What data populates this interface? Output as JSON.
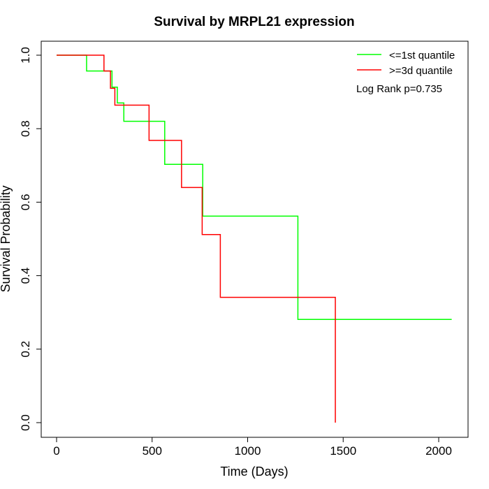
{
  "chart_data": {
    "type": "line",
    "subtype": "kaplan-meier step",
    "title": "Survival by MRPL21 expression",
    "xlabel": "Time (Days)",
    "ylabel": "Survival Probability",
    "xlim": [
      0,
      2070
    ],
    "ylim": [
      0,
      1
    ],
    "xticks": [
      0,
      500,
      1000,
      1500,
      2000
    ],
    "yticks": [
      0.0,
      0.2,
      0.4,
      0.6,
      0.8,
      1.0
    ],
    "xtick_labels": [
      "0",
      "500",
      "1000",
      "1500",
      "2000"
    ],
    "ytick_labels": [
      "0.0",
      "0.2",
      "0.4",
      "0.6",
      "0.8",
      "1.0"
    ],
    "grid": false,
    "legend_position": "top-right",
    "annotation": "Log Rank p=0.735",
    "series": [
      {
        "name": "<=1st quantile",
        "color": "#00ff00",
        "steps": [
          {
            "x": 0,
            "y": 1.0
          },
          {
            "x": 157,
            "y": 0.957
          },
          {
            "x": 280,
            "y": 0.957
          },
          {
            "x": 290,
            "y": 0.913
          },
          {
            "x": 318,
            "y": 0.87
          },
          {
            "x": 352,
            "y": 0.82
          },
          {
            "x": 566,
            "y": 0.703
          },
          {
            "x": 765,
            "y": 0.562
          },
          {
            "x": 1263,
            "y": 0.281
          },
          {
            "x": 2068,
            "y": 0.281
          }
        ]
      },
      {
        "name": ">=3d quantile",
        "color": "#ff0000",
        "steps": [
          {
            "x": 0,
            "y": 1.0
          },
          {
            "x": 248,
            "y": 0.957
          },
          {
            "x": 282,
            "y": 0.91
          },
          {
            "x": 305,
            "y": 0.864
          },
          {
            "x": 484,
            "y": 0.768
          },
          {
            "x": 654,
            "y": 0.64
          },
          {
            "x": 762,
            "y": 0.512
          },
          {
            "x": 857,
            "y": 0.341
          },
          {
            "x": 1459,
            "y": 0.0
          }
        ]
      }
    ]
  }
}
